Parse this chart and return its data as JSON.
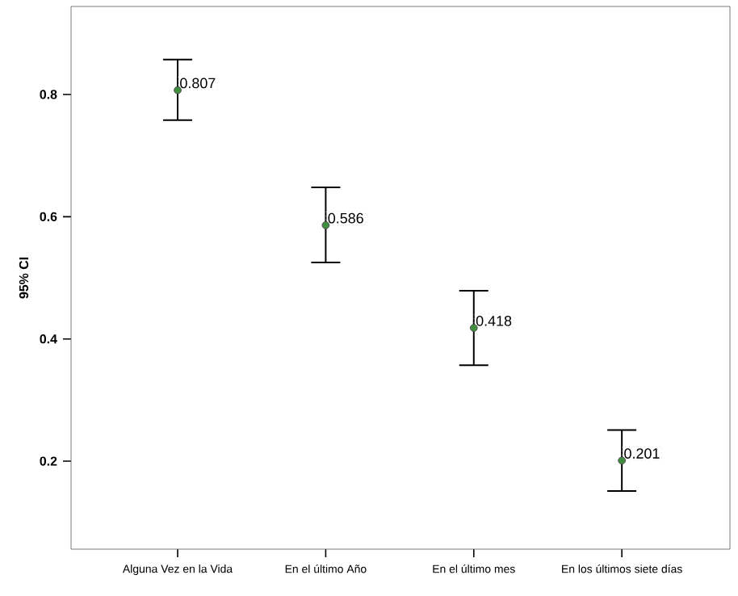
{
  "chart_data": {
    "type": "scatter",
    "ylabel": "95% CI",
    "categories": [
      "Alguna Vez en la Vida",
      "En el último Año",
      "En el último mes",
      "En los últimos siete días"
    ],
    "values": [
      0.807,
      0.586,
      0.418,
      0.201
    ],
    "errors": [
      [
        0.758,
        0.857
      ],
      [
        0.525,
        0.648
      ],
      [
        0.357,
        0.479
      ],
      [
        0.151,
        0.251
      ]
    ],
    "value_labels": [
      "0.807",
      "0.586",
      "0.418",
      "0.201"
    ],
    "color": "#3f8f3f",
    "marker": "circle",
    "ylim": [
      0.056,
      0.944
    ],
    "yticks": [
      0.2,
      0.4,
      0.6,
      0.8
    ],
    "grid": false
  }
}
